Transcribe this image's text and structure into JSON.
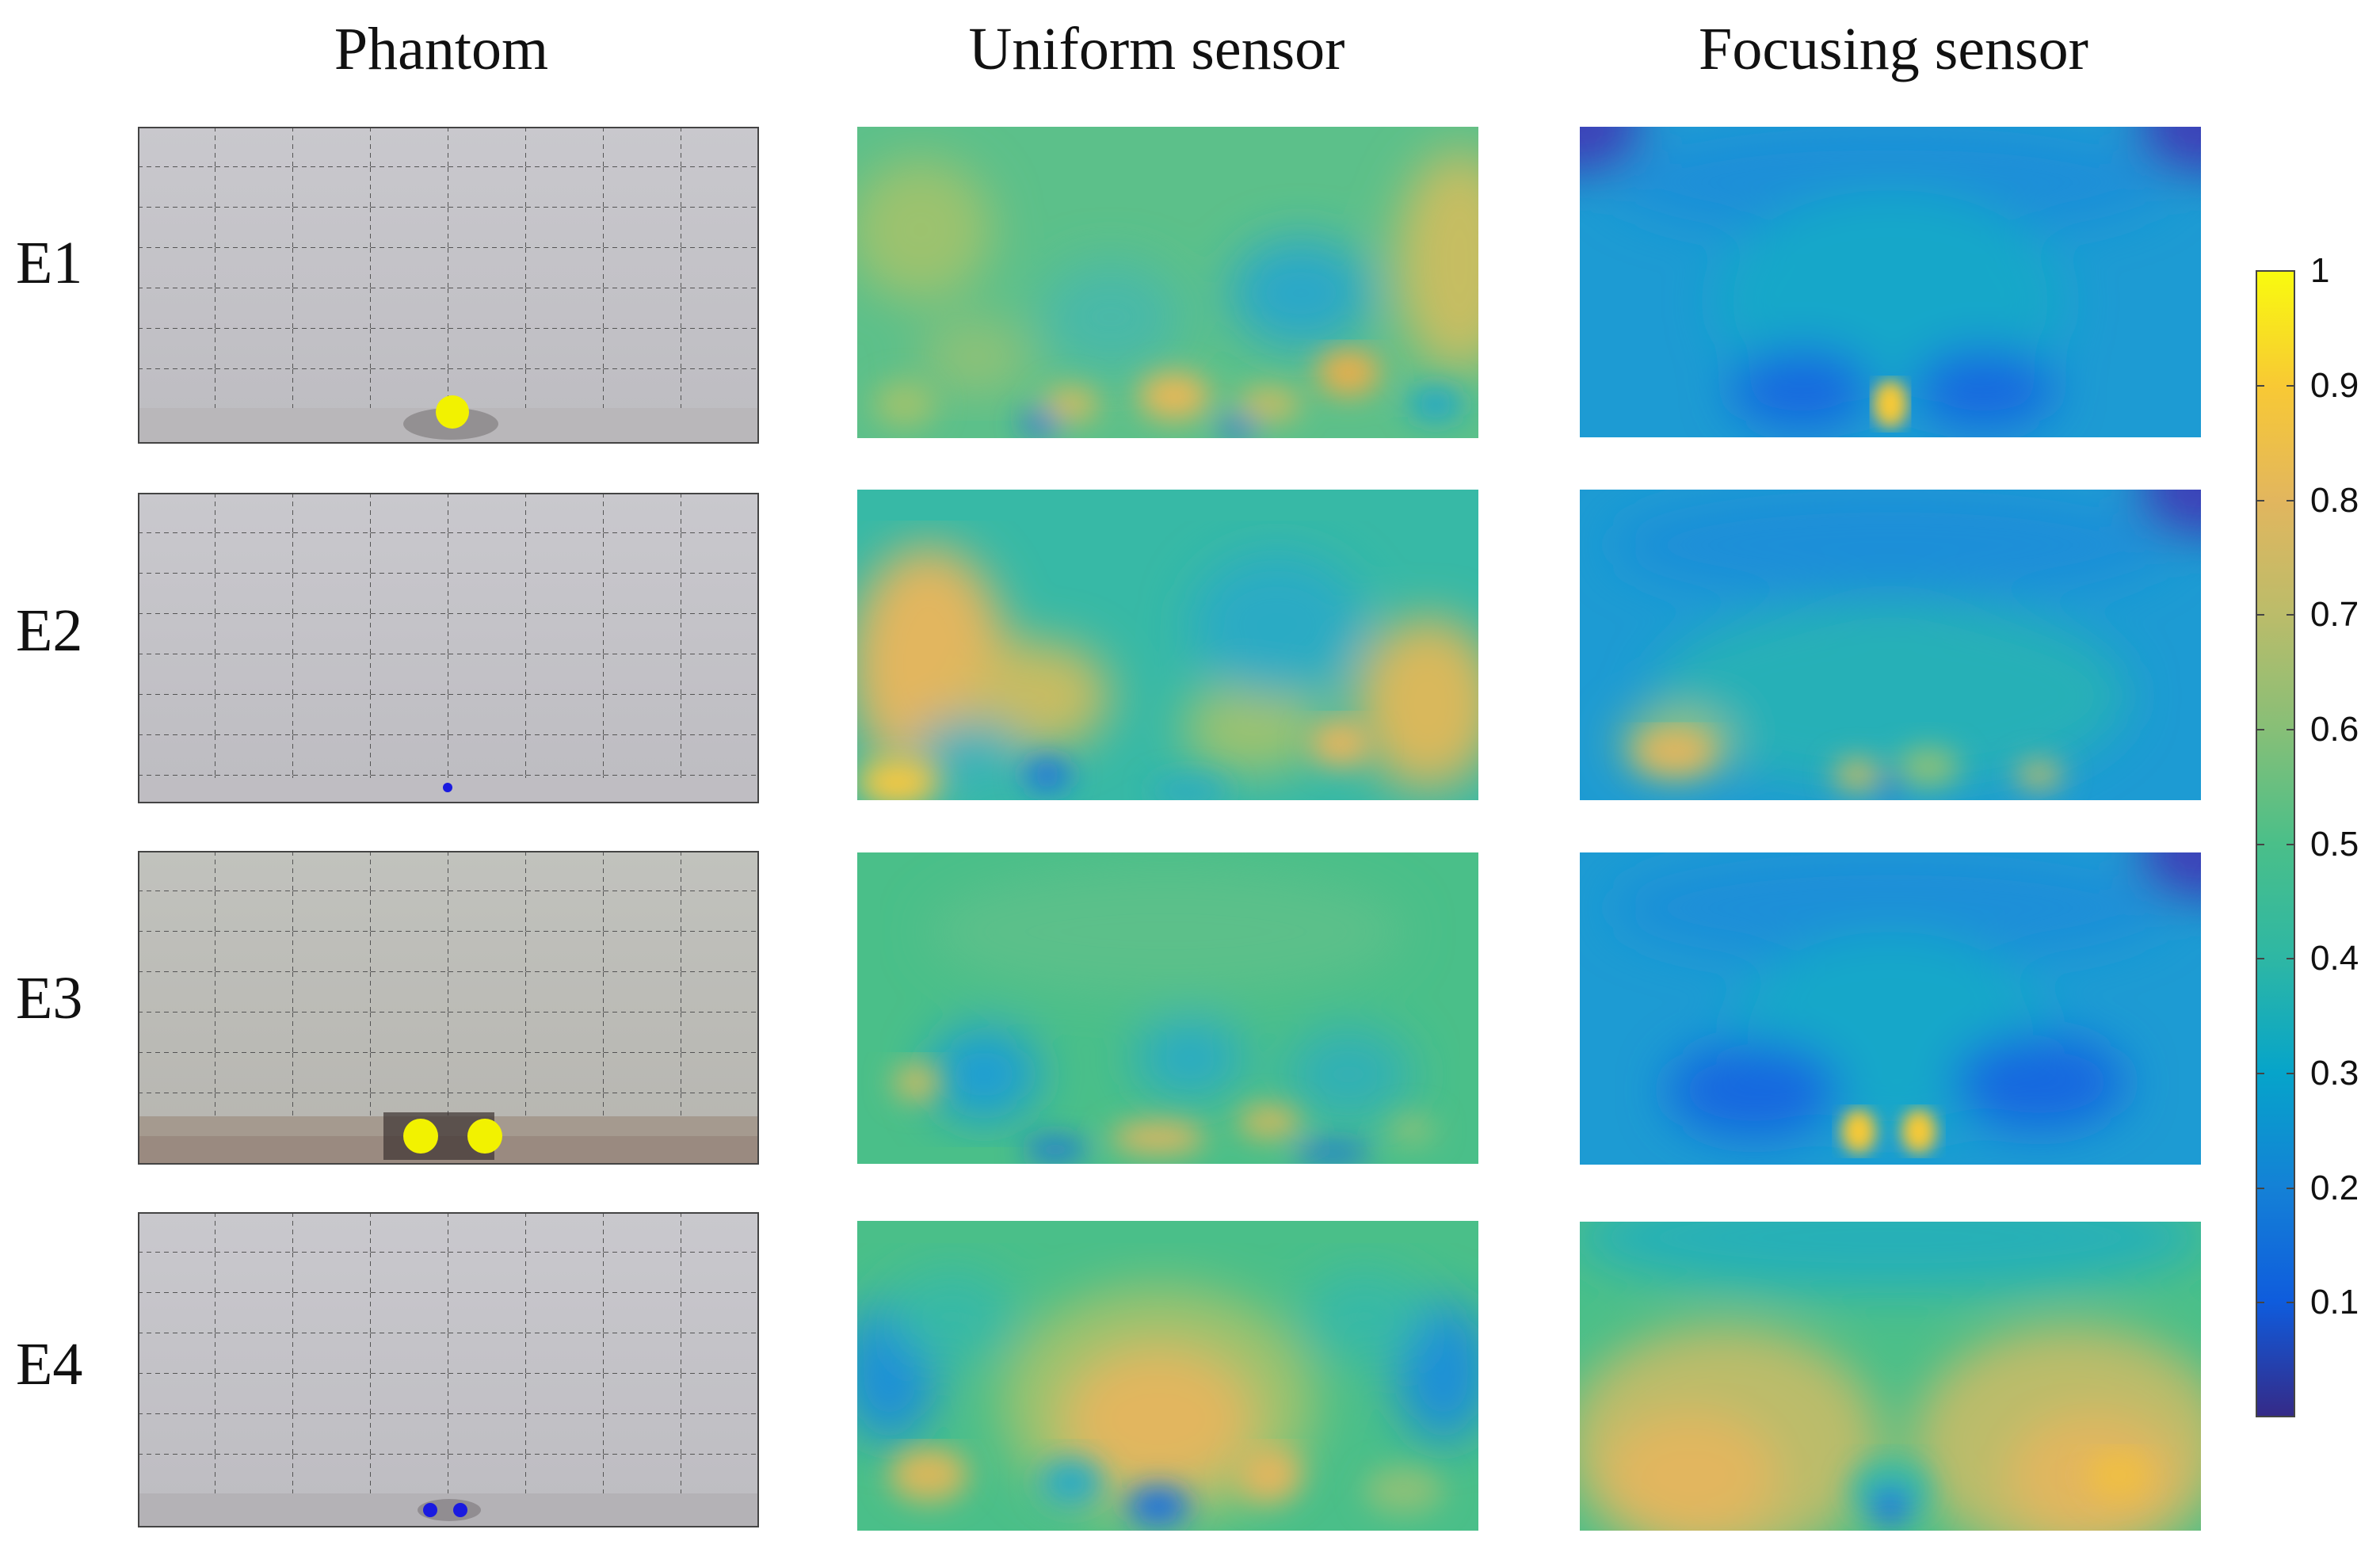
{
  "figure": {
    "columns": [
      "Phantom",
      "Uniform sensor",
      "Focusing sensor"
    ],
    "rows": [
      {
        "label": "E1",
        "inclusion_color": "#f2f200",
        "inclusion_count": 1
      },
      {
        "label": "E2",
        "inclusion_color": "#1a1ae0",
        "inclusion_count": 1
      },
      {
        "label": "E3",
        "inclusion_color": "#f2f200",
        "inclusion_count": 2
      },
      {
        "label": "E4",
        "inclusion_color": "#1a1ae0",
        "inclusion_count": 2
      }
    ]
  },
  "chart_data": {
    "type": "heatmap",
    "title": "",
    "colormap": "parula",
    "colorbar": {
      "min": 0,
      "max": 1,
      "tick_labels": [
        "1",
        "0.9",
        "0.8",
        "0.7",
        "0.6",
        "0.5",
        "0.4",
        "0.3",
        "0.2",
        "0.1"
      ],
      "tick_values": [
        1,
        0.9,
        0.8,
        0.7,
        0.6,
        0.5,
        0.4,
        0.3,
        0.2,
        0.1
      ]
    },
    "colors": {
      "low": "#352a87",
      "mid": "#21bcad",
      "high": "#f9fb0e"
    }
  }
}
